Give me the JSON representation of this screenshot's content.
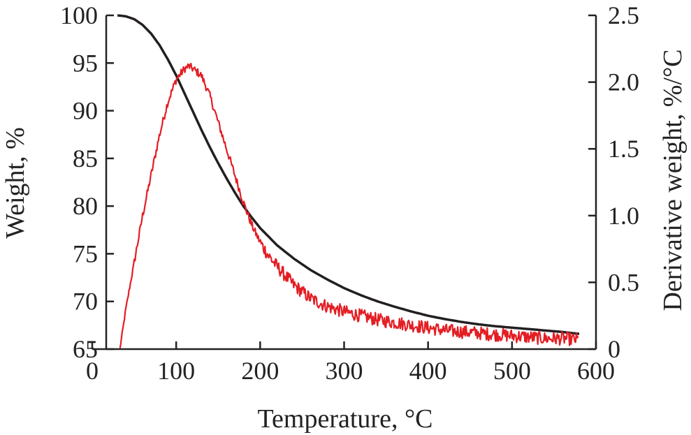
{
  "chart_data": {
    "type": "line",
    "title": "",
    "xlabel": "Temperature, °C",
    "ylabel": "Weight, %",
    "y2label": "Derivative weight, %/°C",
    "xlim": [
      0,
      600
    ],
    "ylim": [
      65,
      100
    ],
    "y2lim": [
      0,
      2.5
    ],
    "x_ticks": [
      0,
      100,
      200,
      300,
      400,
      500,
      600
    ],
    "y_ticks": [
      65,
      70,
      75,
      80,
      85,
      90,
      95,
      100
    ],
    "y2_ticks": [
      0,
      0.5,
      1.0,
      1.5,
      2.0,
      2.5
    ],
    "y_tick_labels": [
      "65",
      "70",
      "75",
      "80",
      "85",
      "90",
      "95",
      "100"
    ],
    "y2_tick_labels": [
      "0",
      "0.5",
      "1.0",
      "1.5",
      "2.0",
      "2.5"
    ],
    "x_tick_labels": [
      "0",
      "100",
      "200",
      "300",
      "400",
      "500",
      "600"
    ],
    "grid": false,
    "series": [
      {
        "name": "Weight",
        "axis": "left",
        "color": "#231f20",
        "x": [
          30,
          40,
          50,
          60,
          70,
          80,
          90,
          100,
          110,
          120,
          130,
          140,
          150,
          160,
          170,
          180,
          190,
          200,
          220,
          240,
          260,
          280,
          300,
          320,
          340,
          360,
          380,
          400,
          420,
          440,
          460,
          480,
          500,
          520,
          540,
          560,
          580
        ],
        "y": [
          100.0,
          99.9,
          99.6,
          99.0,
          98.1,
          96.9,
          95.4,
          93.7,
          91.8,
          89.9,
          88.0,
          86.2,
          84.5,
          82.9,
          81.4,
          80.0,
          78.8,
          77.7,
          75.9,
          74.5,
          73.3,
          72.3,
          71.4,
          70.65,
          70.0,
          69.45,
          68.95,
          68.5,
          68.15,
          67.85,
          67.6,
          67.4,
          67.25,
          67.1,
          66.95,
          66.8,
          66.6
        ]
      },
      {
        "name": "Derivative weight",
        "axis": "right",
        "color": "#e31e24",
        "noisy": true,
        "x": [
          33,
          40,
          50,
          60,
          70,
          80,
          90,
          100,
          110,
          115,
          120,
          130,
          140,
          150,
          160,
          170,
          180,
          190,
          200,
          210,
          220,
          230,
          240,
          250,
          260,
          280,
          300,
          320,
          340,
          360,
          380,
          400,
          420,
          440,
          460,
          480,
          500,
          520,
          540,
          560,
          580
        ],
        "y": [
          0.0,
          0.3,
          0.65,
          1.0,
          1.3,
          1.6,
          1.85,
          2.02,
          2.1,
          2.12,
          2.1,
          2.05,
          1.9,
          1.7,
          1.5,
          1.3,
          1.1,
          0.93,
          0.8,
          0.7,
          0.62,
          0.55,
          0.48,
          0.43,
          0.38,
          0.32,
          0.28,
          0.25,
          0.22,
          0.2,
          0.18,
          0.16,
          0.14,
          0.13,
          0.12,
          0.11,
          0.1,
          0.09,
          0.08,
          0.08,
          0.07
        ]
      }
    ]
  }
}
